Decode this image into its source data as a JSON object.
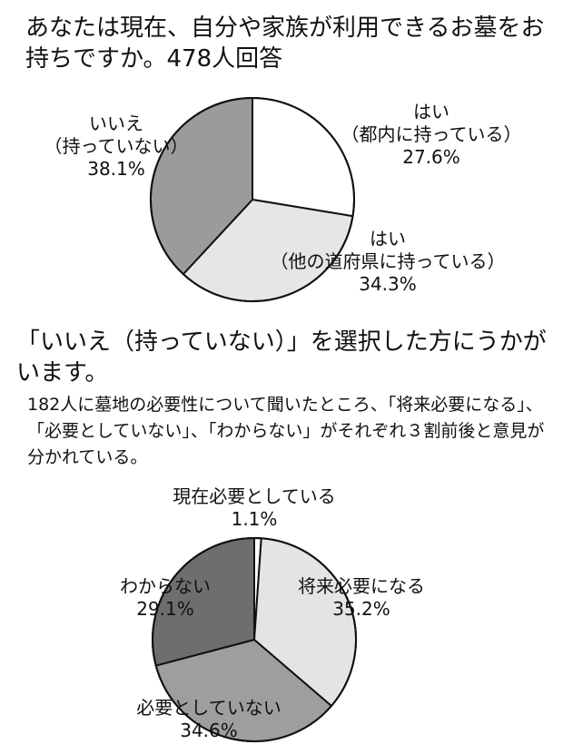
{
  "chart_data": [
    {
      "type": "pie",
      "title": "あなたは現在、自分や家族が利用できるお墓をお持ちですか。478人回答",
      "slices": [
        {
          "label": "はい（都内に持っている）",
          "label_lines": [
            "はい",
            "（都内に持っている）"
          ],
          "value_text": "27.6%",
          "value": 27.6,
          "color": "#ffffff"
        },
        {
          "label": "はい（他の道府県に持っている）",
          "label_lines": [
            "はい",
            "（他の道府県に持っている）"
          ],
          "value_text": "34.3%",
          "value": 34.3,
          "color": "#e6e6e6"
        },
        {
          "label": "いいえ（持っていない）",
          "label_lines": [
            "いいえ",
            "（持っていない）"
          ],
          "value_text": "38.1%",
          "value": 38.1,
          "color": "#9b9b9b"
        }
      ]
    },
    {
      "type": "pie",
      "title": "「いいえ（持っていない）」を選択した方にうかがいます。",
      "subtitle": "182人に墓地の必要性について聞いたところ、「将来必要になる」、「必要としていない」、「わからない」がそれぞれ３割前後と意見が分かれている。",
      "slices": [
        {
          "label": "現在必要としている",
          "label_lines": [
            "現在必要としている"
          ],
          "value_text": "1.1%",
          "value": 1.1,
          "color": "#ffffff"
        },
        {
          "label": "将来必要になる",
          "label_lines": [
            "将来必要になる"
          ],
          "value_text": "35.2%",
          "value": 35.2,
          "color": "#e4e4e4"
        },
        {
          "label": "必要としていない",
          "label_lines": [
            "必要としていない"
          ],
          "value_text": "34.6%",
          "value": 34.6,
          "color": "#9e9e9e"
        },
        {
          "label": "わからない",
          "label_lines": [
            "わからない"
          ],
          "value_text": "29.1%",
          "value": 29.1,
          "color": "#6e6e6e"
        }
      ]
    }
  ]
}
